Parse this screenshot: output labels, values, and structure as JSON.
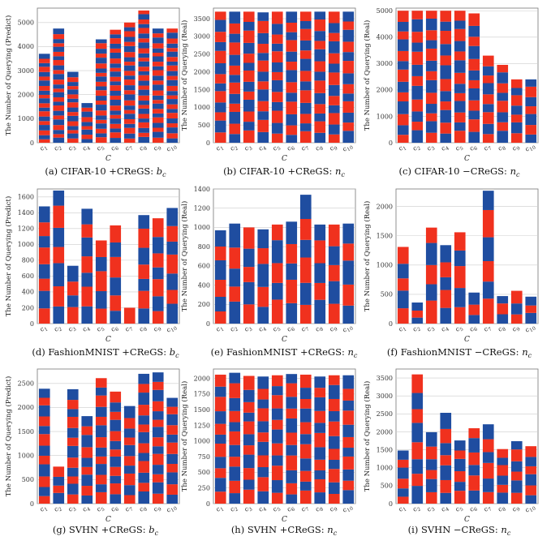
{
  "colors": {
    "red": "#f0311e",
    "blue": "#1f4da0",
    "grid": "#cccccc",
    "axis": "#777777"
  },
  "x_label": "C",
  "chart_data": [
    {
      "type": "bar",
      "stacked": true,
      "categories": [
        "c1",
        "c2",
        "c3",
        "c4",
        "c5",
        "c6",
        "c7",
        "c8",
        "c9",
        "c10"
      ],
      "values": [
        3700,
        4750,
        2950,
        1650,
        4300,
        4700,
        5000,
        5500,
        4750,
        4750
      ],
      "segments": [
        20,
        25,
        16,
        9,
        22,
        24,
        25,
        28,
        24,
        24
      ],
      "ylabel": "The Number of Querying (Predict)",
      "ylim": [
        0,
        5600
      ],
      "yticks": [
        0,
        1000,
        2000,
        3000,
        4000,
        5000
      ],
      "caption": {
        "prefix": "(a) CIFAR-10 +CReGS:",
        "var": "b",
        "sub": "c"
      }
    },
    {
      "type": "bar",
      "stacked": true,
      "categories": [
        "c1",
        "c2",
        "c3",
        "c4",
        "c5",
        "c6",
        "c7",
        "c8",
        "c9",
        "c10"
      ],
      "values": [
        3700,
        3700,
        3700,
        3680,
        3700,
        3700,
        3700,
        3700,
        3700,
        3700
      ],
      "segments": [
        13,
        13,
        13,
        13,
        13,
        13,
        13,
        13,
        13,
        13
      ],
      "ylabel": "The Number of Querying (Real)",
      "ylim": [
        0,
        3800
      ],
      "yticks": [
        0,
        500,
        1000,
        1500,
        2000,
        2500,
        3000,
        3500
      ],
      "caption": {
        "prefix": "(b) CIFAR-10 +CReGS:",
        "var": "n",
        "sub": "c"
      }
    },
    {
      "type": "bar",
      "stacked": true,
      "categories": [
        "c1",
        "c2",
        "c3",
        "c4",
        "c5",
        "c6",
        "c7",
        "c8",
        "c9",
        "c10"
      ],
      "values": [
        5000,
        5000,
        5000,
        5000,
        5000,
        4900,
        3300,
        2950,
        2400,
        2400
      ],
      "segments": [
        13,
        12,
        13,
        12,
        13,
        12,
        9,
        8,
        7,
        7
      ],
      "ylabel": "The Number of Querying (Real)",
      "ylim": [
        0,
        5100
      ],
      "yticks": [
        0,
        1000,
        2000,
        3000,
        4000,
        5000
      ],
      "caption": {
        "prefix": "(c) CIFAR-10 −CReGS:",
        "var": "n",
        "sub": "c"
      }
    },
    {
      "type": "bar",
      "stacked": true,
      "categories": [
        "c1",
        "c2",
        "c3",
        "c4",
        "c5",
        "c6",
        "c7",
        "c8",
        "c9",
        "c10"
      ],
      "values": [
        1480,
        1680,
        730,
        1450,
        1050,
        1240,
        200,
        1370,
        1330,
        1460
      ],
      "segments": [
        8,
        7,
        4,
        7,
        5,
        6,
        1,
        7,
        7,
        7
      ],
      "ylabel": "The Number of Querying (Predict)",
      "ylim": [
        0,
        1700
      ],
      "yticks": [
        0,
        200,
        400,
        600,
        800,
        1000,
        1200,
        1400,
        1600
      ],
      "caption": {
        "prefix": "(d) FashionMNIST +CReGS:",
        "var": "b",
        "sub": "c"
      }
    },
    {
      "type": "bar",
      "stacked": true,
      "categories": [
        "c1",
        "c2",
        "c3",
        "c4",
        "c5",
        "c6",
        "c7",
        "c8",
        "c9",
        "c10"
      ],
      "values": [
        970,
        1040,
        1000,
        980,
        1030,
        1060,
        1340,
        1030,
        1030,
        1040
      ],
      "segments": [
        6,
        5,
        5,
        5,
        5,
        5,
        6,
        5,
        5,
        5
      ],
      "ylabel": "The Number of Querying (Real)",
      "ylim": [
        0,
        1400
      ],
      "yticks": [
        0,
        200,
        400,
        600,
        800,
        1000,
        1200,
        1400
      ],
      "caption": {
        "prefix": "(e) FashionMNIST +CReGS:",
        "var": "n",
        "sub": "c"
      }
    },
    {
      "type": "bar",
      "stacked": true,
      "categories": [
        "c1",
        "c2",
        "c3",
        "c4",
        "c5",
        "c6",
        "c7",
        "c8",
        "c9",
        "c10"
      ],
      "values": [
        1310,
        360,
        1640,
        1340,
        1560,
        530,
        2270,
        470,
        560,
        460
      ],
      "segments": [
        5,
        3,
        5,
        5,
        5,
        3,
        6,
        3,
        3,
        3
      ],
      "ylabel": "The Number of Querying (Real)",
      "ylim": [
        0,
        2300
      ],
      "yticks": [
        0,
        500,
        1000,
        1500,
        2000
      ],
      "caption": {
        "prefix": "(f) FashionMNIST −CReGS:",
        "var": "n",
        "sub": "c"
      }
    },
    {
      "type": "bar",
      "stacked": true,
      "categories": [
        "c1",
        "c2",
        "c3",
        "c4",
        "c5",
        "c6",
        "c7",
        "c8",
        "c9",
        "c10"
      ],
      "values": [
        2390,
        770,
        2380,
        1820,
        2610,
        2330,
        2030,
        2700,
        2730,
        2200
      ],
      "segments": [
        12,
        4,
        12,
        9,
        13,
        12,
        10,
        13,
        14,
        11
      ],
      "ylabel": "The Number of Querying (Predict)",
      "ylim": [
        0,
        2800
      ],
      "yticks": [
        0,
        500,
        1000,
        1500,
        2000,
        2500
      ],
      "caption": {
        "prefix": "(g) SVHN +CReGS:",
        "var": "b",
        "sub": "c"
      }
    },
    {
      "type": "bar",
      "stacked": true,
      "categories": [
        "c1",
        "c2",
        "c3",
        "c4",
        "c5",
        "c6",
        "c7",
        "c8",
        "c9",
        "c10"
      ],
      "values": [
        2060,
        2090,
        2040,
        2030,
        2050,
        2070,
        2060,
        2030,
        2050,
        2050
      ],
      "segments": [
        11,
        11,
        11,
        11,
        11,
        11,
        11,
        11,
        11,
        11
      ],
      "ylabel": "The Number of Querying (Real)",
      "ylim": [
        0,
        2150
      ],
      "yticks": [
        0,
        250,
        500,
        750,
        1000,
        1250,
        1500,
        1750,
        2000
      ],
      "caption": {
        "prefix": "(h) SVHN +CReGS:",
        "var": "n",
        "sub": "c"
      }
    },
    {
      "type": "bar",
      "stacked": true,
      "categories": [
        "c1",
        "c2",
        "c3",
        "c4",
        "c5",
        "c6",
        "c7",
        "c8",
        "c9",
        "c10"
      ],
      "values": [
        1480,
        3600,
        1990,
        2530,
        1760,
        2100,
        2210,
        1520,
        1740,
        1600
      ],
      "segments": [
        6,
        8,
        6,
        7,
        6,
        6,
        6,
        6,
        6,
        6
      ],
      "ylabel": "The Number of Querying (Real)",
      "ylim": [
        0,
        3750
      ],
      "yticks": [
        0,
        500,
        1000,
        1500,
        2000,
        2500,
        3000,
        3500
      ],
      "caption": {
        "prefix": "(i) SVHN −CReGS:",
        "var": "n",
        "sub": "c"
      }
    }
  ]
}
